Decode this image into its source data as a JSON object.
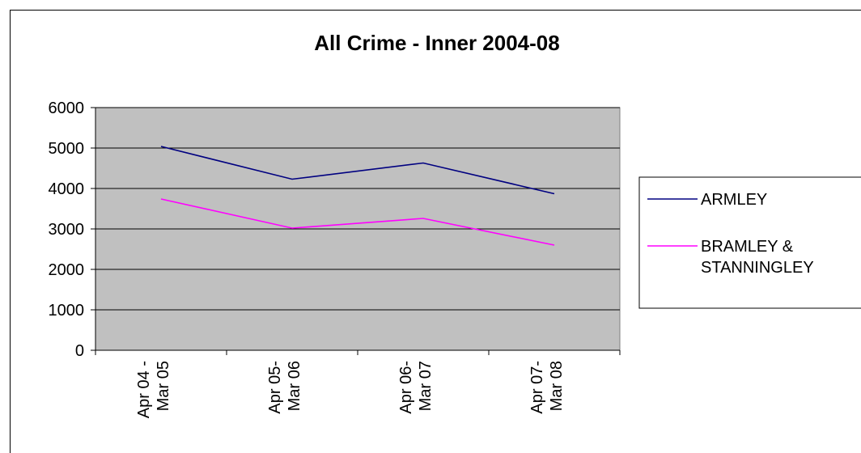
{
  "chart_data": {
    "type": "line",
    "title": "All Crime - Inner 2004-08",
    "categories": [
      [
        "Apr 04 -",
        "Mar 05"
      ],
      [
        "Apr 05-",
        "Mar 06"
      ],
      [
        "Apr 06-",
        "Mar 07"
      ],
      [
        "Apr 07-",
        "Mar 08"
      ]
    ],
    "series": [
      {
        "name": "ARMLEY",
        "values": [
          5040,
          4230,
          4630,
          3870
        ],
        "color": "#000080"
      },
      {
        "name": [
          "BRAMLEY &",
          "STANNINGLEY"
        ],
        "values": [
          3740,
          3020,
          3260,
          2600
        ],
        "color": "#ff00ff"
      }
    ],
    "ylim": [
      0,
      6000
    ],
    "yticks": [
      0,
      1000,
      2000,
      3000,
      4000,
      5000,
      6000
    ],
    "grid": true,
    "plot_background": "#c0c0c0",
    "legend_position": "right"
  }
}
